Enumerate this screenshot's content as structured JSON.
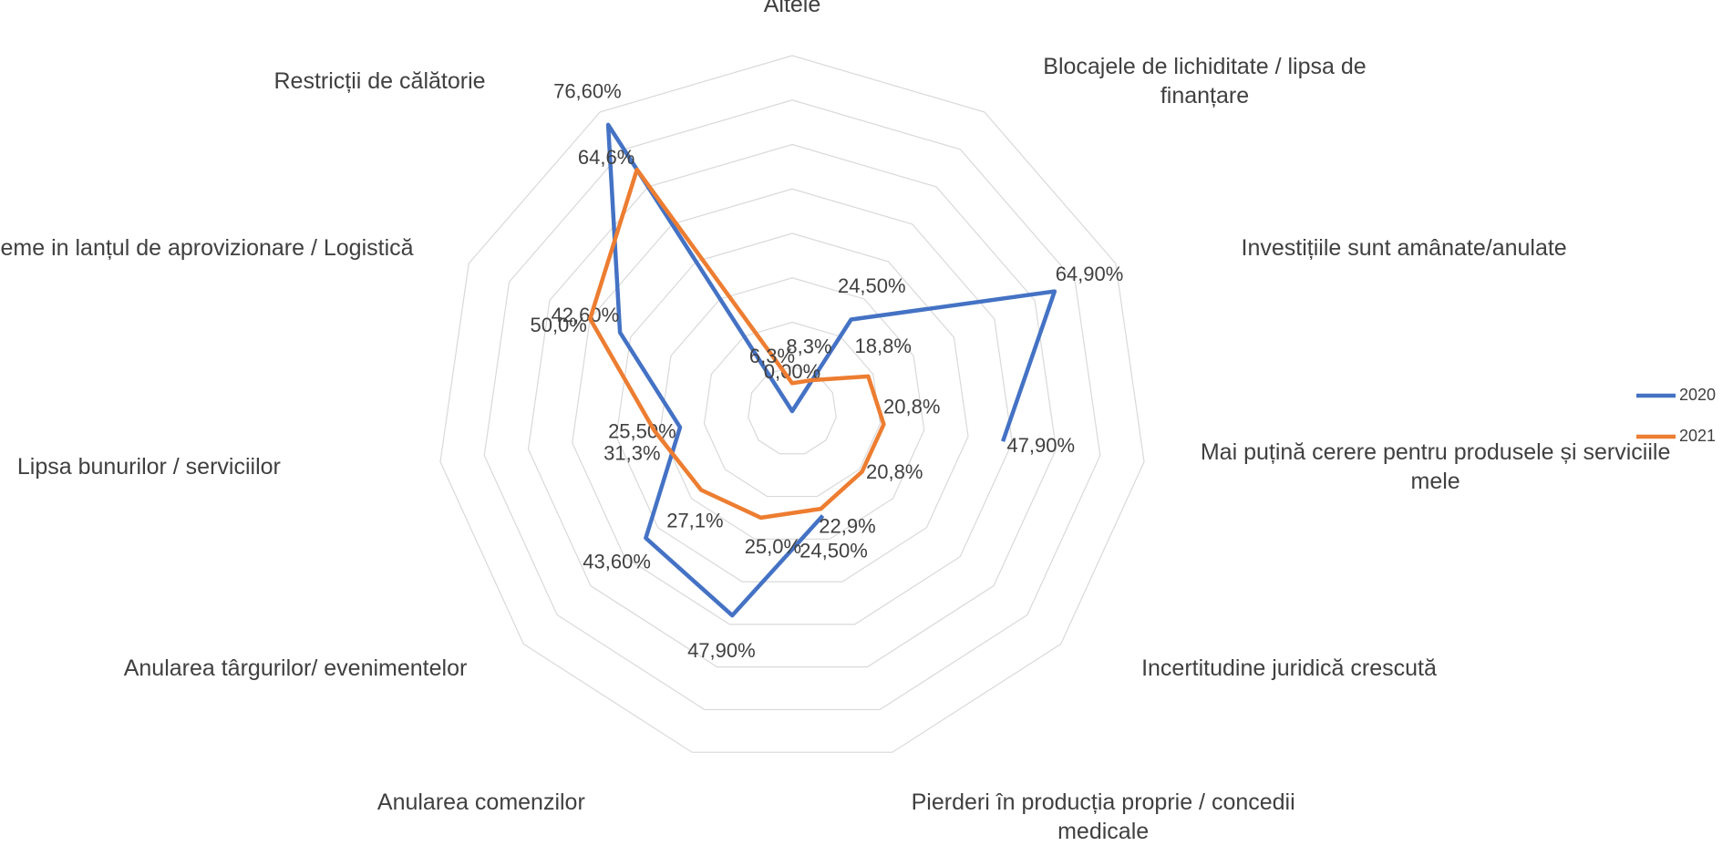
{
  "chart_data": {
    "type": "radar",
    "categories": [
      "Altele",
      "Blocajele de lichiditate / lipsa de finanțare",
      "Investițiile sunt amânate/anulate",
      "Mai puțină cerere pentru produsele și serviciile mele",
      "Incertitudine juridică crescută",
      "Pierderi în producția proprie / concedii medicale",
      "Anularea comenzilor",
      "Anularea târgurilor/ evenimentelor",
      "Lipsa bunurilor / serviciilor",
      "Probleme in lanțul de aprovizionare / Logistică",
      "Restricții de călătorie"
    ],
    "series": [
      {
        "name": "2020",
        "color": "#4472c4",
        "values": [
          0,
          24.5,
          64.9,
          47.9,
          null,
          24.5,
          47.9,
          43.6,
          25.5,
          42.6,
          76.6
        ],
        "value_labels": [
          "0,00%",
          "24,50%",
          "64,90%",
          "47,90%",
          null,
          "24,50%",
          "47,90%",
          "43,60%",
          "25,50%",
          "42,60%",
          "76,60%"
        ]
      },
      {
        "name": "2021",
        "color": "#ed7d31",
        "values": [
          6.3,
          8.3,
          18.8,
          20.8,
          20.8,
          22.9,
          25.0,
          27.1,
          31.3,
          50.0,
          64.6
        ],
        "value_labels": [
          "6,3%",
          "8,3%",
          "18,8%",
          "20,8%",
          "20,8%",
          "22,9%",
          "25,0%",
          "27,1%",
          "31,3%",
          "50,0%",
          "64,6%"
        ]
      }
    ],
    "rlim": [
      0,
      80
    ],
    "rticks": [
      0,
      10,
      20,
      30,
      40,
      50,
      60,
      70,
      80
    ],
    "grid": true,
    "legend": "right"
  }
}
